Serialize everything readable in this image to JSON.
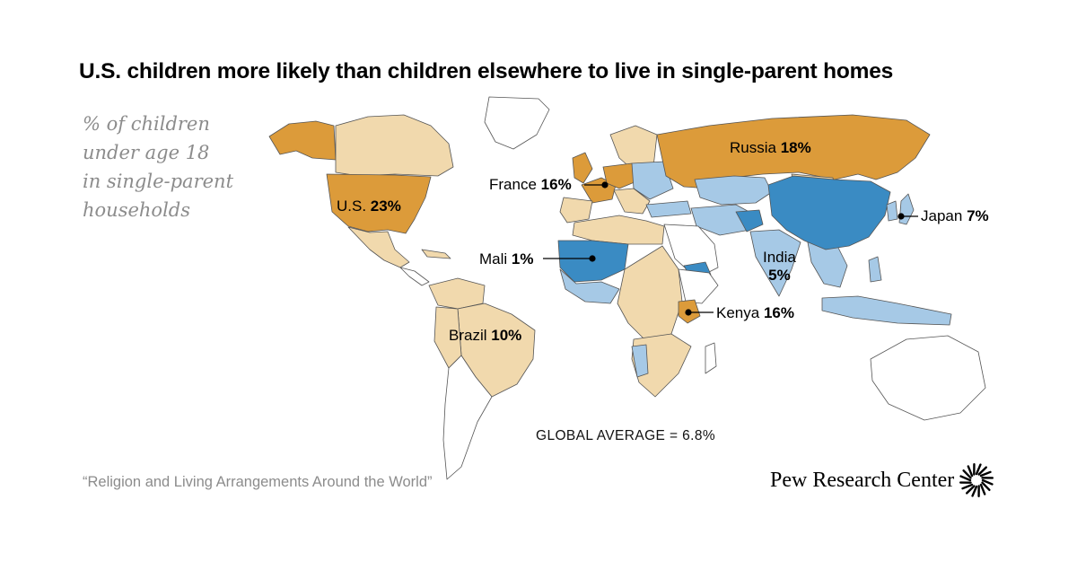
{
  "title": "U.S. children more likely than children elsewhere to live in single-parent homes",
  "subtitle_lines": [
    "% of children",
    "under age 18",
    "in single-parent",
    "households"
  ],
  "labels": {
    "russia": {
      "name": "Russia",
      "value": "18%"
    },
    "france": {
      "name": "France",
      "value": "16%"
    },
    "us": {
      "name": "U.S.",
      "value": "23%"
    },
    "japan": {
      "name": "Japan",
      "value": "7%"
    },
    "mali": {
      "name": "Mali",
      "value": "1%"
    },
    "india": {
      "name": "India",
      "value": "5%"
    },
    "kenya": {
      "name": "Kenya",
      "value": "16%"
    },
    "brazil": {
      "name": "Brazil",
      "value": "10%"
    }
  },
  "global_average": "GLOBAL AVERAGE = 6.8%",
  "source": "“Religion and Living Arrangements Around the World”",
  "brand": "Pew Research Center",
  "colors": {
    "high": "#dc9b3a",
    "above_average": "#f1d9ad",
    "below_average": "#a6c9e6",
    "low": "#3a8bc3",
    "no_data": "#ffffff",
    "border": "#555555"
  }
}
